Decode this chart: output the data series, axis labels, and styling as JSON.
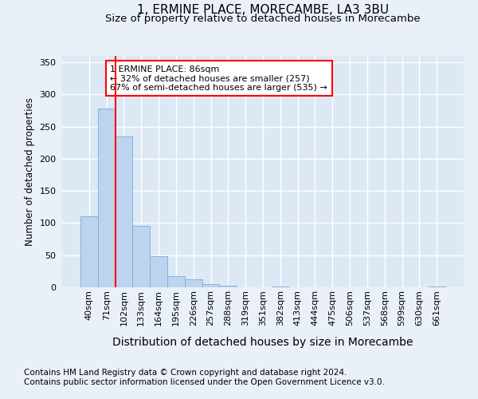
{
  "title": "1, ERMINE PLACE, MORECAMBE, LA3 3BU",
  "subtitle": "Size of property relative to detached houses in Morecambe",
  "xlabel": "Distribution of detached houses by size in Morecambe",
  "ylabel": "Number of detached properties",
  "categories": [
    "40sqm",
    "71sqm",
    "102sqm",
    "133sqm",
    "164sqm",
    "195sqm",
    "226sqm",
    "257sqm",
    "288sqm",
    "319sqm",
    "351sqm",
    "382sqm",
    "413sqm",
    "444sqm",
    "475sqm",
    "506sqm",
    "537sqm",
    "568sqm",
    "599sqm",
    "630sqm",
    "661sqm"
  ],
  "values": [
    110,
    278,
    235,
    95,
    49,
    18,
    12,
    5,
    3,
    0,
    0,
    1,
    0,
    0,
    0,
    0,
    0,
    0,
    0,
    0,
    1
  ],
  "bar_color": "#bdd4ee",
  "bar_edge_color": "#7aadd4",
  "redline_index": 1.5,
  "annotation_label": "1 ERMINE PLACE: 86sqm",
  "annotation_line1": "← 32% of detached houses are smaller (257)",
  "annotation_line2": "67% of semi-detached houses are larger (535) →",
  "annotation_box_color": "white",
  "annotation_box_edge_color": "red",
  "footnote1": "Contains HM Land Registry data © Crown copyright and database right 2024.",
  "footnote2": "Contains public sector information licensed under the Open Government Licence v3.0.",
  "ylim": [
    0,
    360
  ],
  "yticks": [
    0,
    50,
    100,
    150,
    200,
    250,
    300,
    350
  ],
  "background_color": "#eaf0f8",
  "plot_background_color": "#dde8f5",
  "grid_color": "white",
  "title_fontsize": 11,
  "subtitle_fontsize": 9.5,
  "xlabel_fontsize": 10,
  "ylabel_fontsize": 8.5,
  "tick_fontsize": 8,
  "footnote_fontsize": 7.5
}
